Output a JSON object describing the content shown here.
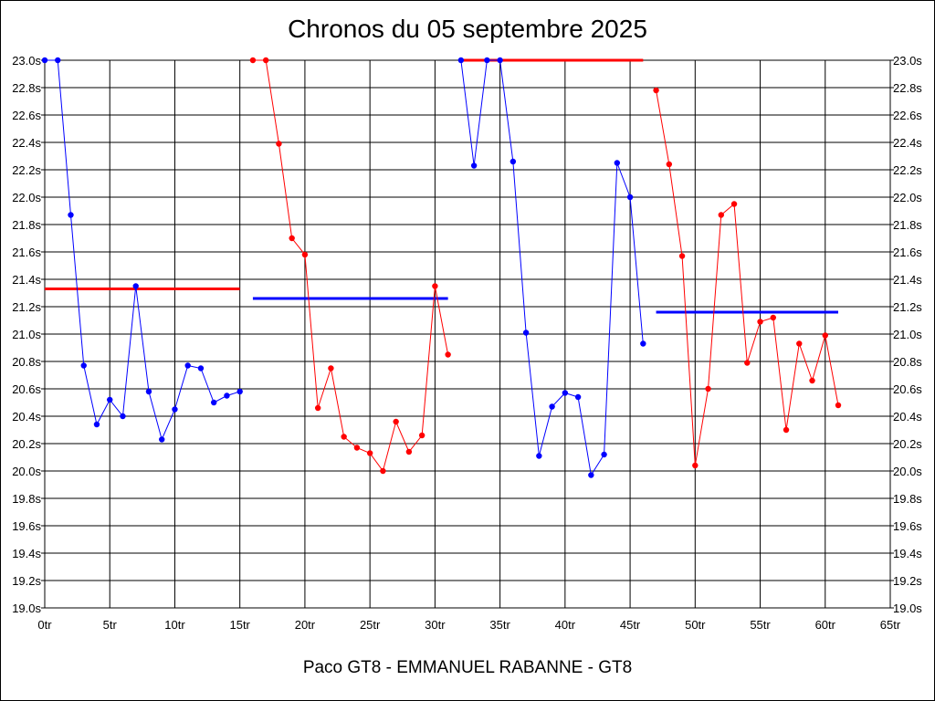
{
  "chart_data": {
    "type": "line",
    "title": "Chronos du 05 septembre 2025",
    "footer": "Paco GT8 - EMMANUEL RABANNE - GT8",
    "x_tick_labels": [
      "0tr",
      "5tr",
      "10tr",
      "15tr",
      "20tr",
      "25tr",
      "30tr",
      "35tr",
      "40tr",
      "45tr",
      "50tr",
      "55tr",
      "60tr",
      "65tr"
    ],
    "y_tick_labels": [
      "23.0s",
      "22.8s",
      "22.6s",
      "22.4s",
      "22.2s",
      "22.0s",
      "21.8s",
      "21.6s",
      "21.4s",
      "21.2s",
      "21.0s",
      "20.8s",
      "20.6s",
      "20.4s",
      "20.2s",
      "20.0s",
      "19.8s",
      "19.6s",
      "19.4s",
      "19.2s",
      "19.0s"
    ],
    "xlim": [
      0,
      65
    ],
    "ylim": [
      19.0,
      23.0
    ],
    "grid": true,
    "series": [
      {
        "color": "#0000ff",
        "points": [
          [
            0,
            23.0
          ],
          [
            1,
            23.0
          ],
          [
            2,
            21.87
          ],
          [
            3,
            20.77
          ],
          [
            4,
            20.34
          ],
          [
            5,
            20.52
          ],
          [
            6,
            20.4
          ],
          [
            7,
            21.35
          ],
          [
            8,
            20.58
          ],
          [
            9,
            20.23
          ],
          [
            10,
            20.45
          ],
          [
            11,
            20.77
          ],
          [
            12,
            20.75
          ],
          [
            13,
            20.5
          ],
          [
            14,
            20.55
          ],
          [
            15,
            20.58
          ]
        ]
      },
      {
        "color": "#ff0000",
        "points": [
          [
            16,
            23.0
          ],
          [
            17,
            23.0
          ],
          [
            18,
            22.39
          ],
          [
            19,
            21.7
          ],
          [
            20,
            21.58
          ],
          [
            21,
            20.46
          ],
          [
            22,
            20.75
          ],
          [
            23,
            20.25
          ],
          [
            24,
            20.17
          ],
          [
            25,
            20.13
          ],
          [
            26,
            20.0
          ],
          [
            27,
            20.36
          ],
          [
            28,
            20.14
          ],
          [
            29,
            20.26
          ],
          [
            30,
            21.35
          ],
          [
            31,
            20.85
          ]
        ]
      },
      {
        "color": "#0000ff",
        "points": [
          [
            32,
            23.0
          ],
          [
            33,
            22.23
          ],
          [
            34,
            23.0
          ],
          [
            35,
            23.0
          ],
          [
            36,
            22.26
          ],
          [
            37,
            21.01
          ],
          [
            38,
            20.11
          ],
          [
            39,
            20.47
          ],
          [
            40,
            20.57
          ],
          [
            41,
            20.54
          ],
          [
            42,
            19.97
          ],
          [
            43,
            20.12
          ],
          [
            44,
            22.25
          ],
          [
            45,
            22.0
          ],
          [
            46,
            20.93
          ]
        ]
      },
      {
        "color": "#ff0000",
        "points": [
          [
            47,
            22.78
          ],
          [
            48,
            22.24
          ],
          [
            49,
            21.57
          ],
          [
            50,
            20.04
          ],
          [
            51,
            20.6
          ],
          [
            52,
            21.87
          ],
          [
            53,
            21.95
          ],
          [
            54,
            20.79
          ],
          [
            55,
            21.09
          ],
          [
            56,
            21.12
          ],
          [
            57,
            20.3
          ],
          [
            58,
            20.93
          ],
          [
            59,
            20.66
          ],
          [
            60,
            20.99
          ],
          [
            61,
            20.48
          ]
        ]
      }
    ],
    "reference_lines": [
      {
        "color": "#ff0000",
        "x": [
          0,
          15
        ],
        "y": 21.33
      },
      {
        "color": "#0000ff",
        "x": [
          16,
          31
        ],
        "y": 21.26
      },
      {
        "color": "#ff0000",
        "x": [
          32,
          46
        ],
        "y": 23.0
      },
      {
        "color": "#0000ff",
        "x": [
          47,
          61
        ],
        "y": 21.16
      }
    ]
  }
}
